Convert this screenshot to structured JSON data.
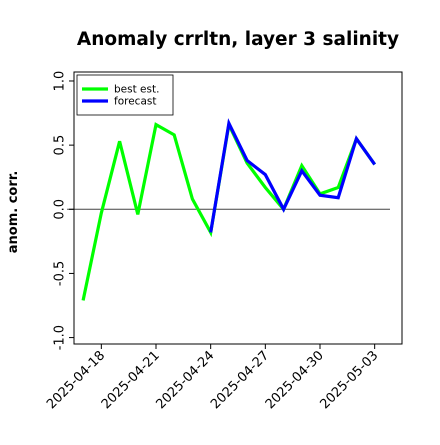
{
  "chart_data": {
    "type": "line",
    "title": "Anomaly crrltn, layer 3 salinity",
    "xlabel": "",
    "ylabel": "anom. corr.",
    "ylim": [
      -1.05,
      1.07
    ],
    "xlim": [
      "2025-04-16T12:00",
      "2025-05-04T12:00"
    ],
    "yticks": [
      -1.0,
      -0.5,
      0.0,
      0.5,
      1.0
    ],
    "ytick_labels": [
      "-1.0",
      "-0.5",
      "0.0",
      "0.5",
      "1.0"
    ],
    "xticks": [
      "2025-04-18",
      "2025-04-21",
      "2025-04-24",
      "2025-04-27",
      "2025-04-30",
      "2025-05-03"
    ],
    "xtick_labels": [
      "2025-04-18",
      "2025-04-21",
      "2025-04-24",
      "2025-04-27",
      "2025-04-30",
      "2025-05-03"
    ],
    "highlighted_xtick": "2025-04-24",
    "highlight_color": "#228b22",
    "zero_line": true,
    "grid": false,
    "legend_position": "top-left",
    "series": [
      {
        "name": "best est.",
        "color": "#00ff00",
        "x": [
          "2025-04-17",
          "2025-04-18",
          "2025-04-19",
          "2025-04-20",
          "2025-04-21",
          "2025-04-22",
          "2025-04-23",
          "2025-04-24",
          "2025-04-25",
          "2025-04-26",
          "2025-04-27",
          "2025-04-28",
          "2025-04-29",
          "2025-04-30",
          "2025-05-01",
          "2025-05-02",
          "2025-05-03"
        ],
        "values": [
          -0.71,
          -0.03,
          0.53,
          -0.04,
          0.66,
          0.58,
          0.08,
          -0.18,
          0.66,
          0.36,
          0.17,
          0.0,
          0.34,
          0.12,
          0.17,
          0.55,
          0.35
        ]
      },
      {
        "name": "forecast",
        "color": "#0000ff",
        "x": [
          "2025-04-24",
          "2025-04-25",
          "2025-04-26",
          "2025-04-27",
          "2025-04-28",
          "2025-04-29",
          "2025-04-30",
          "2025-05-01",
          "2025-05-02",
          "2025-05-03"
        ],
        "values": [
          -0.18,
          0.67,
          0.38,
          0.27,
          0.0,
          0.3,
          0.11,
          0.09,
          0.55,
          0.35
        ]
      }
    ]
  }
}
